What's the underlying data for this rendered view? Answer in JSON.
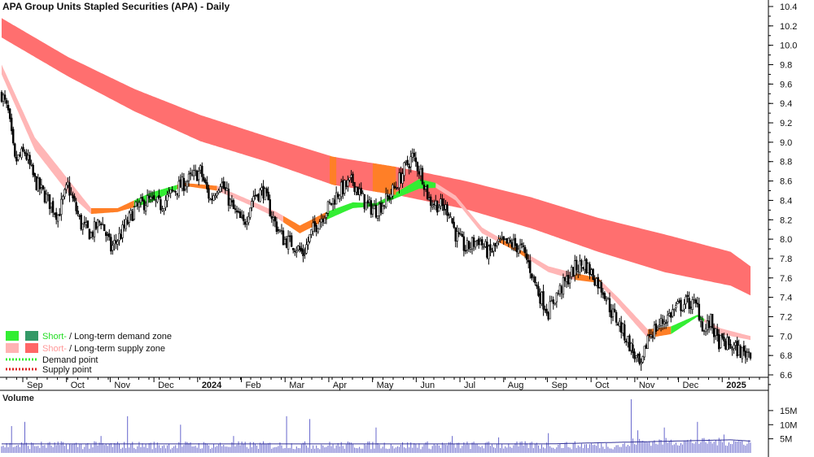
{
  "chart_data": {
    "type": "candlestick",
    "title": "APA Group Units Stapled Securities (APA) - Daily",
    "x_ticks": [
      "Sep",
      "Oct",
      "Nov",
      "Dec",
      "2024",
      "Feb",
      "Mar",
      "Apr",
      "May",
      "Jun",
      "Jul",
      "Aug",
      "Sep",
      "Oct",
      "Nov",
      "Dec",
      "2025"
    ],
    "y_ticks": [
      "10.4",
      "10.2",
      "10.0",
      "9.8",
      "9.6",
      "9.4",
      "9.2",
      "9.0",
      "8.8",
      "8.6",
      "8.4",
      "8.2",
      "8.0",
      "7.8",
      "7.6",
      "7.4",
      "7.2",
      "7.0",
      "6.8",
      "6.6"
    ],
    "ylim": [
      6.5,
      10.45
    ],
    "price_keypoints": [
      [
        0,
        9.5
      ],
      [
        4,
        9.3
      ],
      [
        8,
        8.8
      ],
      [
        14,
        8.9
      ],
      [
        20,
        8.6
      ],
      [
        28,
        8.4
      ],
      [
        34,
        8.25
      ],
      [
        40,
        8.55
      ],
      [
        48,
        8.15
      ],
      [
        54,
        8.05
      ],
      [
        60,
        8.2
      ],
      [
        66,
        7.9
      ],
      [
        72,
        8.05
      ],
      [
        80,
        8.3
      ],
      [
        88,
        8.4
      ],
      [
        96,
        8.35
      ],
      [
        104,
        8.5
      ],
      [
        112,
        8.6
      ],
      [
        120,
        8.7
      ],
      [
        126,
        8.4
      ],
      [
        132,
        8.6
      ],
      [
        140,
        8.3
      ],
      [
        146,
        8.15
      ],
      [
        152,
        8.45
      ],
      [
        158,
        8.5
      ],
      [
        164,
        8.2
      ],
      [
        170,
        8.0
      ],
      [
        176,
        7.95
      ],
      [
        182,
        7.85
      ],
      [
        188,
        8.1
      ],
      [
        196,
        8.3
      ],
      [
        204,
        8.5
      ],
      [
        212,
        8.6
      ],
      [
        220,
        8.35
      ],
      [
        226,
        8.3
      ],
      [
        232,
        8.4
      ],
      [
        238,
        8.55
      ],
      [
        244,
        8.75
      ],
      [
        248,
        8.85
      ],
      [
        254,
        8.65
      ],
      [
        258,
        8.4
      ],
      [
        264,
        8.35
      ],
      [
        270,
        8.3
      ],
      [
        274,
        8.05
      ],
      [
        280,
        7.9
      ],
      [
        288,
        8.0
      ],
      [
        294,
        7.85
      ],
      [
        300,
        7.95
      ],
      [
        308,
        7.95
      ],
      [
        314,
        7.9
      ],
      [
        318,
        7.75
      ],
      [
        324,
        7.45
      ],
      [
        330,
        7.25
      ],
      [
        334,
        7.4
      ],
      [
        340,
        7.55
      ],
      [
        346,
        7.7
      ],
      [
        352,
        7.75
      ],
      [
        356,
        7.65
      ],
      [
        360,
        7.55
      ],
      [
        364,
        7.45
      ],
      [
        368,
        7.25
      ],
      [
        372,
        7.15
      ],
      [
        378,
        6.95
      ],
      [
        382,
        6.8
      ],
      [
        386,
        6.65
      ],
      [
        390,
        7.0
      ],
      [
        396,
        7.1
      ],
      [
        402,
        7.2
      ],
      [
        408,
        7.3
      ],
      [
        414,
        7.35
      ],
      [
        420,
        7.3
      ],
      [
        424,
        7.05
      ],
      [
        428,
        7.15
      ],
      [
        432,
        6.95
      ],
      [
        440,
        6.9
      ],
      [
        448,
        6.82
      ],
      [
        452,
        6.85
      ]
    ],
    "long_term_supply_zone_upper": [
      [
        0,
        10.28
      ],
      [
        40,
        9.88
      ],
      [
        80,
        9.55
      ],
      [
        120,
        9.28
      ],
      [
        160,
        9.06
      ],
      [
        200,
        8.85
      ],
      [
        240,
        8.74
      ],
      [
        280,
        8.6
      ],
      [
        320,
        8.43
      ],
      [
        360,
        8.22
      ],
      [
        400,
        8.05
      ],
      [
        440,
        7.87
      ],
      [
        452,
        7.72
      ]
    ],
    "long_term_supply_zone_lower": [
      [
        0,
        10.08
      ],
      [
        40,
        9.68
      ],
      [
        80,
        9.32
      ],
      [
        120,
        9.01
      ],
      [
        160,
        8.8
      ],
      [
        200,
        8.56
      ],
      [
        240,
        8.45
      ],
      [
        280,
        8.31
      ],
      [
        320,
        8.11
      ],
      [
        360,
        7.87
      ],
      [
        400,
        7.66
      ],
      [
        440,
        7.52
      ],
      [
        452,
        7.42
      ]
    ],
    "short_term_zone_upper": [
      [
        0,
        9.8
      ],
      [
        20,
        9.05
      ],
      [
        40,
        8.62
      ],
      [
        54,
        8.32
      ],
      [
        70,
        8.32
      ],
      [
        90,
        8.48
      ],
      [
        110,
        8.58
      ],
      [
        130,
        8.55
      ],
      [
        150,
        8.4
      ],
      [
        166,
        8.28
      ],
      [
        180,
        8.14
      ],
      [
        196,
        8.28
      ],
      [
        212,
        8.38
      ],
      [
        226,
        8.37
      ],
      [
        242,
        8.52
      ],
      [
        252,
        8.62
      ],
      [
        262,
        8.58
      ],
      [
        274,
        8.45
      ],
      [
        290,
        8.12
      ],
      [
        310,
        7.92
      ],
      [
        330,
        7.72
      ],
      [
        346,
        7.65
      ],
      [
        360,
        7.6
      ],
      [
        372,
        7.4
      ],
      [
        390,
        7.07
      ],
      [
        404,
        7.1
      ],
      [
        420,
        7.22
      ],
      [
        434,
        7.08
      ],
      [
        452,
        7.0
      ]
    ],
    "short_term_zone_lower": [
      [
        0,
        9.7
      ],
      [
        20,
        8.92
      ],
      [
        40,
        8.48
      ],
      [
        54,
        8.26
      ],
      [
        70,
        8.28
      ],
      [
        90,
        8.38
      ],
      [
        110,
        8.55
      ],
      [
        130,
        8.5
      ],
      [
        150,
        8.35
      ],
      [
        166,
        8.22
      ],
      [
        180,
        8.06
      ],
      [
        196,
        8.2
      ],
      [
        212,
        8.32
      ],
      [
        226,
        8.34
      ],
      [
        242,
        8.45
      ],
      [
        252,
        8.52
      ],
      [
        262,
        8.53
      ],
      [
        274,
        8.4
      ],
      [
        290,
        8.06
      ],
      [
        310,
        7.88
      ],
      [
        330,
        7.66
      ],
      [
        346,
        7.58
      ],
      [
        360,
        7.55
      ],
      [
        372,
        7.33
      ],
      [
        390,
        6.98
      ],
      [
        404,
        7.02
      ],
      [
        420,
        7.2
      ],
      [
        434,
        7.02
      ],
      [
        452,
        6.96
      ]
    ],
    "volume": {
      "label": "Volume",
      "y_ticks": [
        "15M",
        "10M",
        "5M"
      ],
      "ylim": [
        0,
        19
      ],
      "baseline_level_M": 3.2,
      "spikes_M": [
        [
          6,
          9.5
        ],
        [
          14,
          11
        ],
        [
          60,
          6
        ],
        [
          76,
          13
        ],
        [
          108,
          10
        ],
        [
          140,
          6
        ],
        [
          172,
          13
        ],
        [
          186,
          12
        ],
        [
          226,
          9
        ],
        [
          272,
          6
        ],
        [
          300,
          5.5
        ],
        [
          330,
          7
        ],
        [
          380,
          19
        ],
        [
          384,
          8
        ],
        [
          400,
          9
        ],
        [
          420,
          11
        ],
        [
          436,
          6.5
        ]
      ]
    },
    "legend": [
      {
        "label_a": "Short-",
        "sep": " / ",
        "label_b": "Long-term demand zone",
        "color_a": "#33ee33",
        "color_b": "#339966"
      },
      {
        "label_a": "Short-",
        "sep": " / ",
        "label_b": "Long-term supply zone",
        "color_a": "#ffb3b3",
        "color_b": "#ff6666"
      },
      {
        "label": "Demand point",
        "color": "#33ee33",
        "style": "dotted"
      },
      {
        "label": "Supply point",
        "color": "#dd2222",
        "style": "dotted"
      }
    ],
    "colors": {
      "long_supply": "#ff6f6f",
      "short_supply": "#ffb6b6",
      "short_demand": "#33ee33",
      "transition": "#ff7f27",
      "candle": "#000000",
      "volume_bar": "#6666cc",
      "volume_avg": "#333399"
    },
    "legend_position": "bottom-left"
  }
}
